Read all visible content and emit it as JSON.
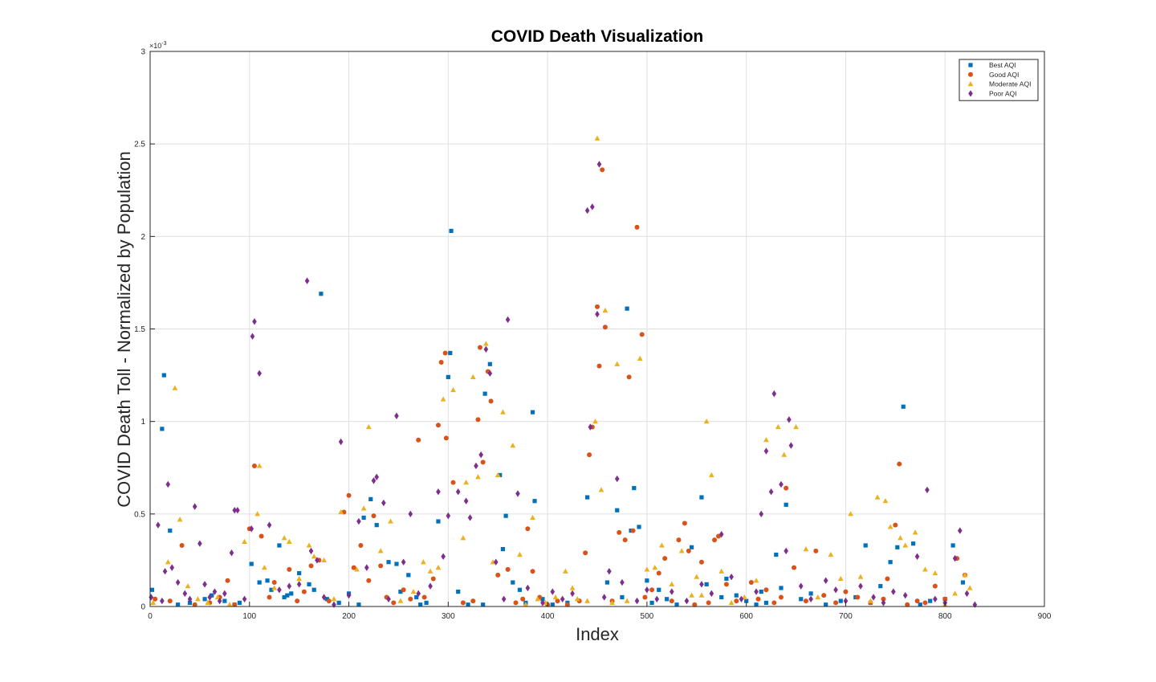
{
  "chart_data": {
    "type": "scatter",
    "title": "COVID Death Visualization",
    "xlabel": "Index",
    "ylabel": "COVID Death Toll - Normalized by Population",
    "xlim": [
      0,
      900
    ],
    "ylim": [
      0,
      0.003
    ],
    "x_ticks": [
      0,
      100,
      200,
      300,
      400,
      500,
      600,
      700,
      800,
      900
    ],
    "x_tick_labels": [
      "0",
      "100",
      "200",
      "300",
      "400",
      "500",
      "600",
      "700",
      "800",
      "900"
    ],
    "y_ticks": [
      0,
      0.0005,
      0.001,
      0.0015,
      0.002,
      0.0025,
      0.003
    ],
    "y_tick_labels": [
      "0",
      "0.5",
      "1",
      "1.5",
      "2",
      "2.5",
      "3"
    ],
    "y_exponent_label": "×10",
    "y_exponent_power": "-3",
    "grid": true,
    "legend_position": "top-right",
    "series": [
      {
        "name": "Best AQI",
        "marker": "square",
        "color": "#0072BD",
        "x": [
          2,
          12,
          14,
          20,
          28,
          40,
          55,
          62,
          75,
          85,
          90,
          102,
          110,
          118,
          122,
          130,
          135,
          138,
          142,
          150,
          160,
          165,
          172,
          178,
          190,
          200,
          210,
          215,
          222,
          228,
          240,
          248,
          252,
          260,
          268,
          272,
          278,
          290,
          300,
          302,
          303,
          310,
          320,
          335,
          337,
          342,
          352,
          355,
          358,
          365,
          372,
          378,
          385,
          387,
          395,
          405,
          420,
          440,
          460,
          470,
          475,
          480,
          484,
          487,
          492,
          500,
          505,
          512,
          520,
          530,
          545,
          555,
          560,
          575,
          580,
          590,
          600,
          610,
          615,
          620,
          630,
          635,
          640,
          655,
          665,
          680,
          695,
          710,
          720,
          725,
          735,
          745,
          752,
          758,
          768,
          775,
          785,
          800,
          808,
          818
        ],
        "y": [
          9e-05,
          0.00096,
          0.00125,
          0.00041,
          1e-05,
          2e-05,
          4e-05,
          6e-05,
          3e-05,
          1e-05,
          2e-05,
          0.00023,
          0.00013,
          0.00014,
          9e-05,
          0.00033,
          5e-05,
          6e-05,
          7e-05,
          0.00018,
          0.00012,
          9e-05,
          0.00169,
          4e-05,
          2e-05,
          7e-05,
          1e-05,
          0.00048,
          0.00058,
          0.00044,
          0.00024,
          0.00023,
          8e-05,
          0.00017,
          5e-05,
          1e-05,
          2e-05,
          0.00046,
          0.00124,
          0.00137,
          0.00203,
          8e-05,
          1e-05,
          1e-05,
          0.00115,
          0.00131,
          0.00071,
          0.00031,
          0.00049,
          0.00013,
          9e-05,
          2e-05,
          0.00105,
          0.00057,
          4e-05,
          1e-05,
          2e-05,
          0.00059,
          0.00013,
          0.00052,
          5e-05,
          0.00161,
          0.00041,
          0.00064,
          0.00043,
          0.00014,
          2e-05,
          9e-05,
          4e-05,
          1e-05,
          0.00032,
          0.00059,
          0.00012,
          5e-05,
          0.00015,
          6e-05,
          3e-05,
          1e-05,
          8e-05,
          2e-05,
          0.00028,
          0.0001,
          0.00055,
          4e-05,
          7e-05,
          1e-05,
          3e-05,
          5e-05,
          0.00033,
          2e-05,
          0.00011,
          0.00024,
          0.00032,
          0.00108,
          0.00034,
          1e-05,
          3e-05,
          4e-05,
          0.00033,
          0.00013
        ]
      },
      {
        "name": "Good AQI",
        "marker": "circle",
        "color": "#D95319",
        "x": [
          5,
          20,
          32,
          45,
          60,
          70,
          78,
          85,
          100,
          105,
          112,
          120,
          125,
          140,
          148,
          155,
          162,
          170,
          180,
          195,
          200,
          205,
          212,
          220,
          225,
          232,
          238,
          245,
          255,
          262,
          270,
          276,
          285,
          290,
          293,
          297,
          298,
          305,
          315,
          325,
          330,
          332,
          335,
          340,
          343,
          350,
          360,
          368,
          375,
          380,
          385,
          392,
          400,
          410,
          420,
          432,
          438,
          442,
          445,
          450,
          452,
          455,
          458,
          465,
          472,
          478,
          482,
          486,
          490,
          495,
          498,
          505,
          512,
          518,
          525,
          532,
          538,
          542,
          548,
          555,
          562,
          568,
          572,
          580,
          590,
          605,
          612,
          620,
          628,
          635,
          640,
          648,
          660,
          670,
          678,
          690,
          700,
          712,
          725,
          738,
          742,
          750,
          754,
          762,
          772,
          780,
          790,
          800,
          812,
          820
        ],
        "y": [
          4e-05,
          3e-05,
          0.00033,
          1e-05,
          2e-05,
          5e-05,
          0.00014,
          1e-05,
          0.00042,
          0.00076,
          0.00038,
          5e-05,
          0.00013,
          0.0002,
          3e-05,
          8e-05,
          0.00022,
          0.00025,
          3e-05,
          0.00051,
          0.0006,
          0.00021,
          0.00033,
          0.00014,
          0.00049,
          0.00022,
          5e-05,
          2e-05,
          9e-05,
          4e-05,
          0.0009,
          5e-05,
          0.00015,
          0.00098,
          0.00132,
          0.00137,
          0.00091,
          0.00067,
          2e-05,
          3e-05,
          0.00101,
          0.0014,
          0.00078,
          0.00127,
          0.00111,
          0.00017,
          0.0002,
          2e-05,
          4e-05,
          0.00042,
          0.00019,
          5e-05,
          1e-05,
          3e-05,
          1e-05,
          3e-05,
          0.00029,
          0.00082,
          0.00097,
          0.00162,
          0.0013,
          0.00236,
          0.00151,
          3e-05,
          0.0004,
          0.00036,
          0.00124,
          0.00041,
          0.00205,
          0.00147,
          5e-05,
          9e-05,
          0.00018,
          0.00026,
          3e-05,
          0.00036,
          0.00045,
          0.0003,
          1e-05,
          0.00024,
          2e-05,
          0.00036,
          0.00038,
          0.00012,
          3e-05,
          0.00013,
          4e-05,
          9e-05,
          2e-05,
          5e-05,
          0.00064,
          0.00021,
          3e-05,
          0.0003,
          6e-05,
          2e-05,
          8e-05,
          5e-05,
          2e-05,
          4e-05,
          0.00015,
          0.00044,
          0.00077,
          1e-05,
          3e-05,
          2e-05,
          0.00011,
          4e-05,
          0.00026,
          0.00017
        ]
      },
      {
        "name": "Moderate AQI",
        "marker": "triangle",
        "color": "#EDB120",
        "x": [
          3,
          18,
          25,
          30,
          38,
          48,
          58,
          68,
          80,
          95,
          108,
          110,
          115,
          125,
          135,
          140,
          150,
          160,
          165,
          175,
          185,
          192,
          208,
          215,
          220,
          232,
          242,
          252,
          265,
          275,
          282,
          290,
          295,
          305,
          315,
          318,
          325,
          330,
          338,
          345,
          350,
          355,
          365,
          372,
          378,
          385,
          390,
          398,
          408,
          418,
          425,
          430,
          440,
          448,
          450,
          454,
          458,
          465,
          470,
          480,
          493,
          500,
          508,
          515,
          525,
          535,
          545,
          550,
          555,
          560,
          565,
          575,
          585,
          598,
          610,
          620,
          632,
          638,
          650,
          660,
          672,
          685,
          695,
          705,
          715,
          725,
          732,
          740,
          745,
          755,
          760,
          770,
          780,
          790,
          800,
          810,
          820,
          825
        ],
        "y": [
          2e-05,
          0.00024,
          0.00118,
          0.00047,
          0.00011,
          4e-05,
          2e-05,
          5e-05,
          1e-05,
          0.00035,
          0.0005,
          0.00076,
          0.00021,
          0.0001,
          0.00037,
          0.00035,
          0.00015,
          0.00033,
          0.00027,
          0.00025,
          4e-05,
          0.00051,
          0.0002,
          0.00053,
          0.00097,
          0.0003,
          0.00046,
          3e-05,
          8e-05,
          0.00024,
          0.00019,
          0.00021,
          0.00112,
          0.00117,
          0.00037,
          0.00067,
          0.00124,
          0.0007,
          0.00142,
          0.00024,
          0.00071,
          0.00105,
          0.00087,
          0.00028,
          1e-05,
          0.00048,
          4e-05,
          2e-05,
          5e-05,
          0.00019,
          0.0001,
          4e-05,
          3e-05,
          0.001,
          0.00253,
          0.00063,
          0.0016,
          2e-05,
          0.00131,
          3e-05,
          0.00134,
          0.0002,
          0.00021,
          0.00033,
          0.00012,
          0.0003,
          6e-05,
          0.00016,
          6e-05,
          0.001,
          0.00071,
          0.00019,
          2e-05,
          5e-05,
          0.00014,
          0.0009,
          0.00097,
          0.00082,
          0.00097,
          0.00031,
          5e-05,
          0.00028,
          0.00015,
          0.0005,
          0.00016,
          3e-05,
          0.00059,
          0.00057,
          0.00043,
          0.00037,
          0.00033,
          0.0004,
          0.0002,
          0.00018,
          1e-05,
          7e-05,
          0.00017,
          0.0001
        ]
      },
      {
        "name": "Poor AQI",
        "marker": "diamond",
        "color": "#7E2F8E",
        "x": [
          1,
          8,
          12,
          15,
          18,
          22,
          28,
          35,
          40,
          45,
          50,
          55,
          60,
          65,
          70,
          75,
          82,
          85,
          88,
          95,
          102,
          103,
          105,
          110,
          120,
          130,
          140,
          150,
          158,
          162,
          168,
          175,
          185,
          192,
          200,
          210,
          218,
          225,
          228,
          235,
          240,
          248,
          255,
          262,
          270,
          282,
          290,
          295,
          300,
          310,
          318,
          322,
          328,
          333,
          338,
          342,
          348,
          356,
          360,
          370,
          380,
          395,
          405,
          415,
          425,
          440,
          443,
          445,
          450,
          452,
          457,
          462,
          470,
          475,
          490,
          500,
          510,
          525,
          540,
          555,
          565,
          575,
          585,
          595,
          610,
          615,
          620,
          625,
          628,
          635,
          640,
          643,
          645,
          655,
          665,
          680,
          690,
          700,
          715,
          728,
          738,
          748,
          760,
          772,
          782,
          790,
          800,
          810,
          815,
          822,
          830
        ],
        "y": [
          5e-05,
          0.00044,
          3e-05,
          0.00019,
          0.00066,
          0.00021,
          0.00013,
          7e-05,
          4e-05,
          0.00054,
          0.00034,
          0.00012,
          5e-05,
          8e-05,
          3e-05,
          7e-05,
          0.00029,
          0.00052,
          0.00052,
          4e-05,
          0.00042,
          0.00146,
          0.00154,
          0.00126,
          0.00044,
          9e-05,
          0.00011,
          0.00012,
          0.00176,
          0.0003,
          0.00025,
          5e-05,
          1e-05,
          0.00089,
          6e-05,
          0.00046,
          0.00021,
          0.00068,
          0.0007,
          0.00056,
          4e-05,
          0.00103,
          0.00024,
          0.0005,
          7e-05,
          0.00011,
          0.00062,
          0.00027,
          0.00049,
          0.00062,
          0.00057,
          0.00048,
          0.00076,
          0.00082,
          0.00139,
          0.00126,
          0.00024,
          4e-05,
          0.00155,
          0.00061,
          0.0001,
          2e-05,
          8e-05,
          4e-05,
          7e-05,
          0.00214,
          0.00097,
          0.00216,
          0.00158,
          0.00239,
          5e-05,
          0.00019,
          0.00069,
          0.00013,
          3e-05,
          9e-05,
          4e-05,
          8e-05,
          3e-05,
          0.00012,
          7e-05,
          0.00039,
          0.00016,
          4e-05,
          8e-05,
          0.0005,
          0.00084,
          0.00062,
          0.00115,
          0.00066,
          0.0003,
          0.00101,
          0.00087,
          0.00011,
          4e-05,
          0.00014,
          9e-05,
          3e-05,
          0.00011,
          5e-05,
          2e-05,
          8e-05,
          6e-05,
          0.00027,
          0.00063,
          4e-05,
          2e-05,
          0.00026,
          0.00041,
          7e-05,
          1e-05
        ]
      }
    ]
  }
}
